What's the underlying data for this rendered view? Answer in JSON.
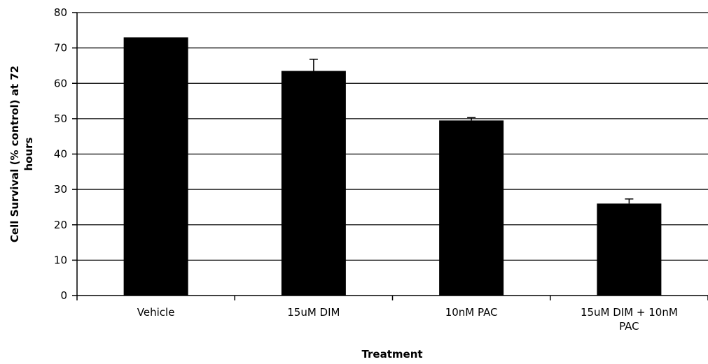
{
  "chart_data": {
    "type": "bar",
    "categories": [
      [
        "Vehicle"
      ],
      [
        "15uM DIM"
      ],
      [
        "10nM PAC"
      ],
      [
        "15uM DIM + 10nM",
        "PAC"
      ]
    ],
    "values": [
      73,
      63.5,
      49.5,
      26
    ],
    "error": [
      0,
      3.3,
      0.8,
      1.3
    ],
    "xlabel": "Treatment",
    "ylabel": [
      "Cell Survival (% control) at 72",
      "hours"
    ],
    "ylim": [
      0,
      80
    ],
    "yticks": [
      0,
      10,
      20,
      30,
      40,
      50,
      60,
      70,
      80
    ],
    "grid": true,
    "legend": "none",
    "bar_color": "#000000"
  }
}
